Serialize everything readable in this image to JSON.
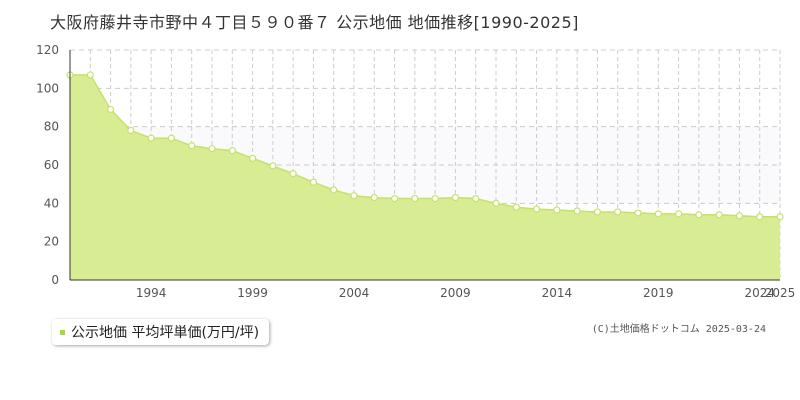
{
  "chart_data": {
    "type": "area",
    "title": "大阪府藤井寺市野中４丁目５９０番７ 公示地価 地価推移[1990-2025]",
    "x": [
      1990,
      1991,
      1992,
      1993,
      1994,
      1995,
      1996,
      1997,
      1998,
      1999,
      2000,
      2001,
      2002,
      2003,
      2004,
      2005,
      2006,
      2007,
      2008,
      2009,
      2010,
      2011,
      2012,
      2013,
      2014,
      2015,
      2016,
      2017,
      2018,
      2019,
      2020,
      2021,
      2022,
      2023,
      2024,
      2025
    ],
    "series": [
      {
        "name": "公示地価 平均坪単価(万円/坪)",
        "values": [
          107,
          107,
          89,
          78,
          74,
          74,
          70,
          68.5,
          67.5,
          63.5,
          59.5,
          55.5,
          51,
          47,
          44,
          43,
          42.5,
          42.5,
          42.5,
          43,
          42.5,
          40,
          38,
          37,
          36.5,
          36,
          35.5,
          35.5,
          35,
          34.5,
          34.5,
          34,
          34,
          33.5,
          33,
          33
        ]
      }
    ],
    "x_tick_labels": [
      "1994",
      "1999",
      "2004",
      "2009",
      "2014",
      "2019",
      "2024",
      "2025"
    ],
    "x_tick_values": [
      1994,
      1999,
      2004,
      2009,
      2014,
      2019,
      2024,
      2025
    ],
    "y_tick_labels": [
      "0",
      "20",
      "40",
      "60",
      "80",
      "100",
      "120"
    ],
    "ylim": [
      0,
      120
    ],
    "xlim": [
      1990,
      2025
    ],
    "grid": true,
    "legend_position": "bottom-left",
    "colors": {
      "fill": "#d8ec93",
      "line": "#c4e268",
      "marker_fill": "#ffffff",
      "legend_marker": "#a6d93b",
      "grid": "#cccccc",
      "plot_bg_upper": "#faf9fc"
    }
  },
  "legend": {
    "label": "公示地価 平均坪単価(万円/坪)"
  },
  "copyright": "(C)土地価格ドットコム 2025-03-24"
}
